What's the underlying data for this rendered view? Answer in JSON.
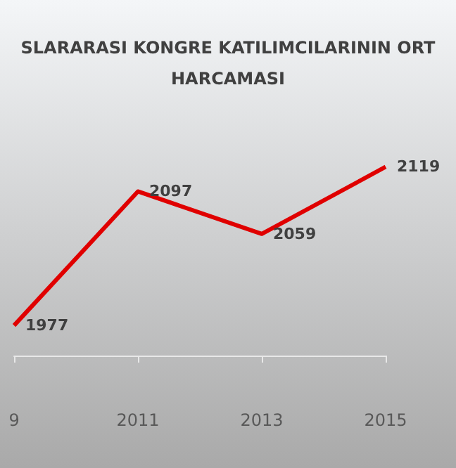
{
  "chart_data": {
    "type": "line",
    "title": "SLARARASI KONGRE KATILIMCILARININ ORT\nHARCAMASI",
    "categories": [
      "9",
      "2011",
      "2013",
      "2015"
    ],
    "series": [
      {
        "color": "#e00000",
        "values": [
          1977,
          2097,
          2059,
          2119
        ]
      }
    ],
    "data_labels": true,
    "marker": "none",
    "line_style": "solid"
  }
}
